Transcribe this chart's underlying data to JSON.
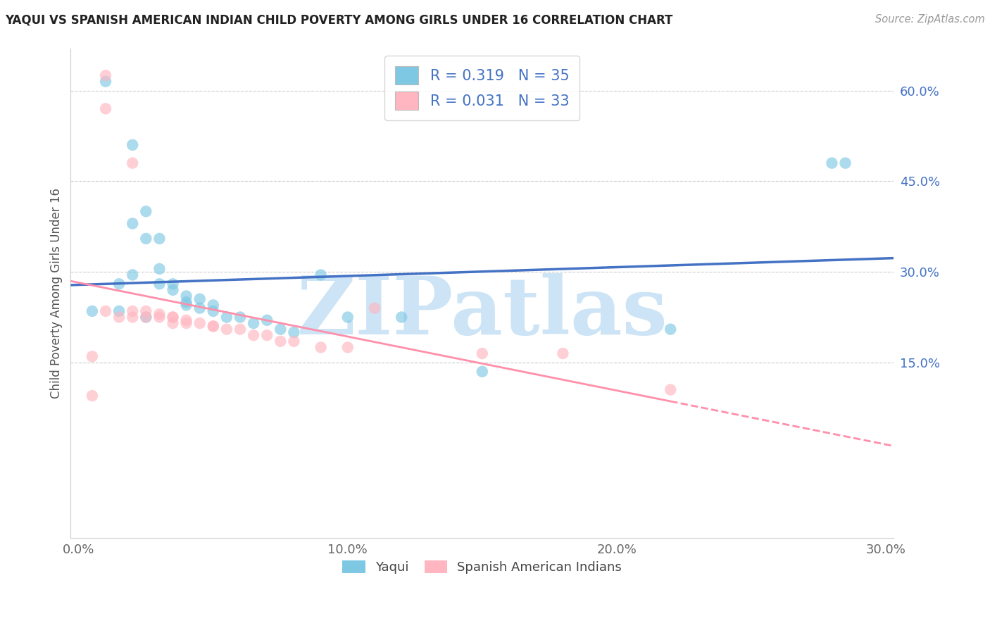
{
  "title": "YAQUI VS SPANISH AMERICAN INDIAN CHILD POVERTY AMONG GIRLS UNDER 16 CORRELATION CHART",
  "source": "Source: ZipAtlas.com",
  "ylabel": "Child Poverty Among Girls Under 16",
  "legend_labels": [
    "Yaqui",
    "Spanish American Indians"
  ],
  "legend_r": [
    0.319,
    0.031
  ],
  "legend_n": [
    35,
    33
  ],
  "xlim": [
    -0.003,
    0.303
  ],
  "ylim": [
    -0.14,
    0.67
  ],
  "ytick_vals": [
    0.15,
    0.3,
    0.45,
    0.6
  ],
  "xtick_vals": [
    0.0,
    0.1,
    0.2,
    0.3
  ],
  "yaqui_x": [
    0.01,
    0.02,
    0.02,
    0.025,
    0.025,
    0.03,
    0.03,
    0.03,
    0.035,
    0.035,
    0.04,
    0.04,
    0.045,
    0.045,
    0.05,
    0.05,
    0.055,
    0.06,
    0.065,
    0.07,
    0.075,
    0.08,
    0.09,
    0.1,
    0.12,
    0.15,
    0.22,
    0.28,
    0.005,
    0.015,
    0.015,
    0.02,
    0.025,
    0.04,
    0.285
  ],
  "yaqui_y": [
    0.615,
    0.51,
    0.38,
    0.4,
    0.355,
    0.355,
    0.305,
    0.28,
    0.28,
    0.27,
    0.26,
    0.25,
    0.255,
    0.24,
    0.245,
    0.235,
    0.225,
    0.225,
    0.215,
    0.22,
    0.205,
    0.2,
    0.295,
    0.225,
    0.225,
    0.135,
    0.205,
    0.48,
    0.235,
    0.235,
    0.28,
    0.295,
    0.225,
    0.245,
    0.48
  ],
  "spanish_x": [
    0.005,
    0.01,
    0.01,
    0.015,
    0.02,
    0.02,
    0.025,
    0.025,
    0.03,
    0.03,
    0.035,
    0.035,
    0.04,
    0.04,
    0.045,
    0.05,
    0.05,
    0.055,
    0.06,
    0.065,
    0.07,
    0.075,
    0.08,
    0.09,
    0.1,
    0.11,
    0.15,
    0.18,
    0.005,
    0.01,
    0.02,
    0.035,
    0.22
  ],
  "spanish_y": [
    0.095,
    0.625,
    0.57,
    0.225,
    0.235,
    0.225,
    0.235,
    0.225,
    0.23,
    0.225,
    0.225,
    0.215,
    0.22,
    0.215,
    0.215,
    0.21,
    0.21,
    0.205,
    0.205,
    0.195,
    0.195,
    0.185,
    0.185,
    0.175,
    0.175,
    0.24,
    0.165,
    0.165,
    0.16,
    0.235,
    0.48,
    0.225,
    0.105
  ],
  "yaqui_color": "#7EC8E3",
  "spanish_color": "#FFB6C1",
  "yaqui_line_color": "#4472C4",
  "spanish_line_color": "#FF8FAB",
  "background_color": "#ffffff",
  "watermark": "ZIPatlas",
  "watermark_color": "#cce4f5",
  "grid_color": "#cccccc"
}
